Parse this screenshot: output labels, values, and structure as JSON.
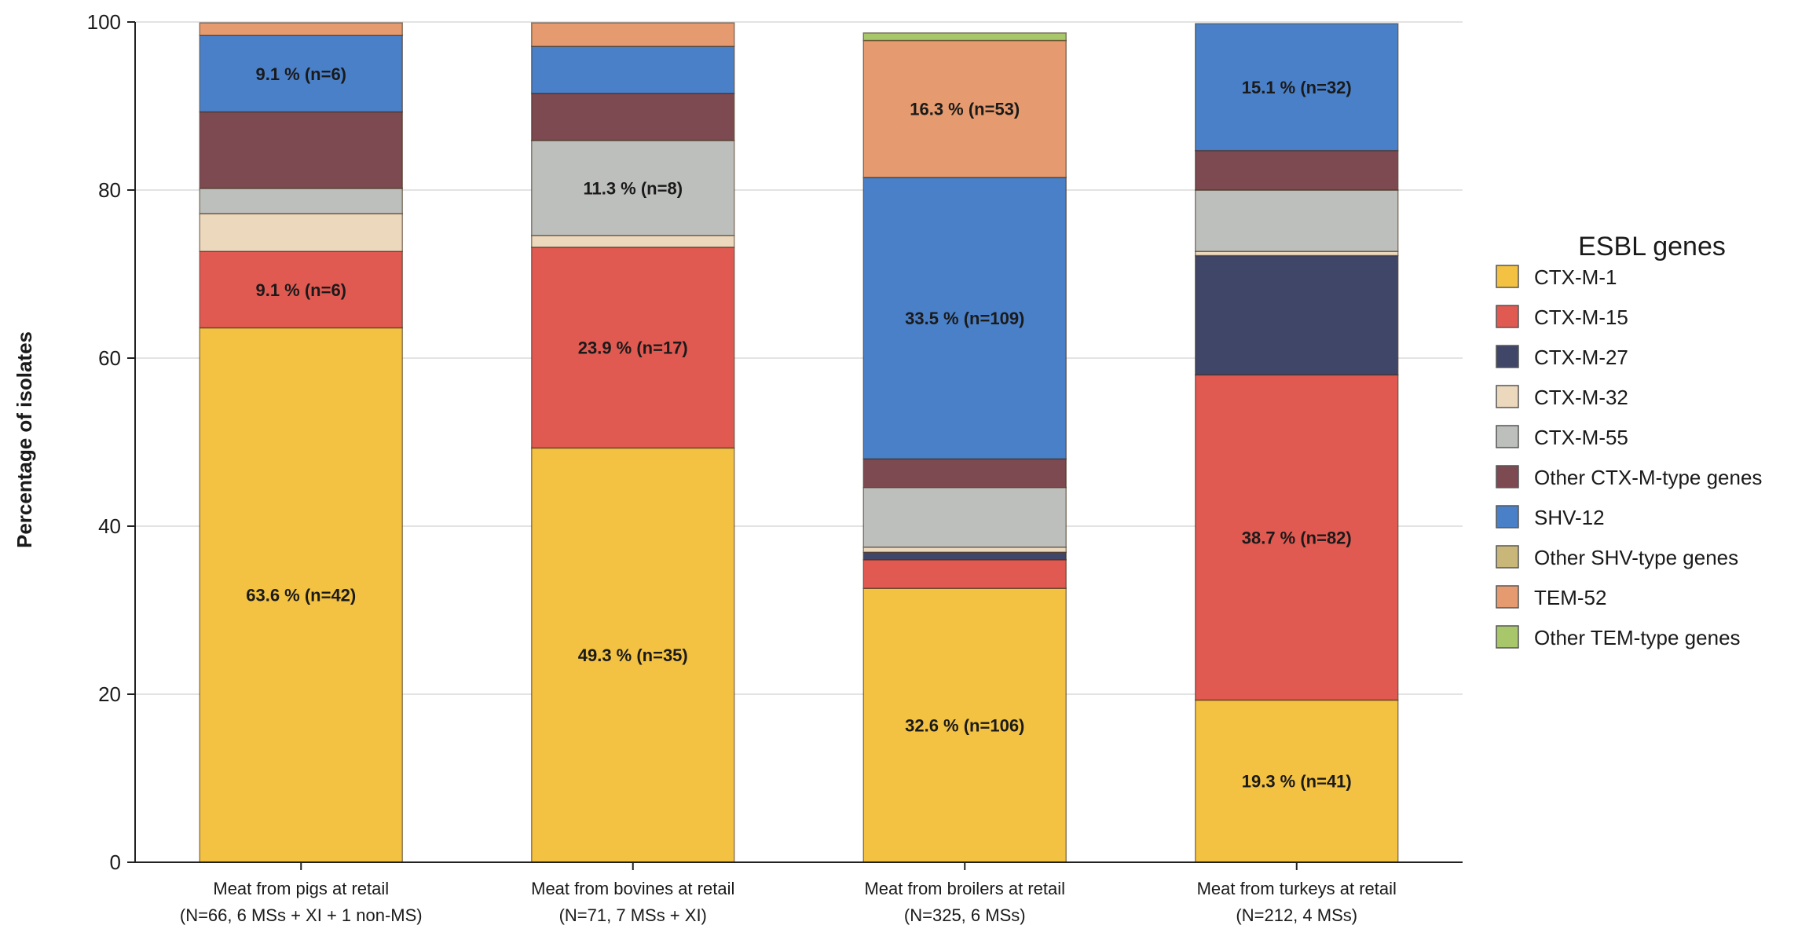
{
  "chart_data": {
    "type": "bar",
    "stacked": true,
    "ylabel": "Percentage of isolates",
    "xlabel": "",
    "ylim": [
      0,
      100
    ],
    "yticks": [
      0,
      20,
      40,
      60,
      80,
      100
    ],
    "grid": true,
    "legend": {
      "title": "ESBL genes",
      "placement": "right"
    },
    "categories": [
      {
        "line1": "Meat from pigs at retail",
        "line2": "(N=66, 6 MSs + XI + 1 non-MS)"
      },
      {
        "line1": "Meat from bovines at retail",
        "line2": "(N=71, 7 MSs + XI)"
      },
      {
        "line1": "Meat from broilers at retail",
        "line2": "(N=325, 6 MSs)"
      },
      {
        "line1": "Meat from turkeys at retail",
        "line2": "(N=212, 4 MSs)"
      }
    ],
    "series": [
      {
        "name": "CTX-M-1",
        "color": "#f3c242",
        "values": [
          63.6,
          49.3,
          32.6,
          19.3
        ],
        "labels": [
          "63.6 % (n=42)",
          "49.3 % (n=35)",
          "32.6 % (n=106)",
          "19.3 % (n=41)"
        ]
      },
      {
        "name": "CTX-M-15",
        "color": "#e05a52",
        "values": [
          9.1,
          23.9,
          3.4,
          38.7
        ],
        "labels": [
          "9.1 % (n=6)",
          "23.9 % (n=17)",
          "",
          "38.7 % (n=82)"
        ]
      },
      {
        "name": "CTX-M-27",
        "color": "#3f4668",
        "values": [
          0,
          0,
          0.9,
          14.2
        ],
        "labels": [
          "",
          "",
          "",
          ""
        ]
      },
      {
        "name": "CTX-M-32",
        "color": "#ecd8bd",
        "values": [
          4.5,
          1.4,
          0.6,
          0.5
        ],
        "labels": [
          "",
          "",
          "",
          ""
        ]
      },
      {
        "name": "CTX-M-55",
        "color": "#bdbfbc",
        "values": [
          3.0,
          11.3,
          7.1,
          7.3
        ],
        "labels": [
          "",
          "11.3 % (n=8)",
          "",
          ""
        ]
      },
      {
        "name": "Other CTX-M-type genes",
        "color": "#7d4a52",
        "values": [
          9.1,
          5.6,
          3.4,
          4.7
        ],
        "labels": [
          "",
          "",
          "",
          ""
        ]
      },
      {
        "name": "SHV-12",
        "color": "#4a80c8",
        "values": [
          9.1,
          5.6,
          33.5,
          15.1
        ],
        "labels": [
          "9.1 % (n=6)",
          "",
          "33.5 % (n=109)",
          "15.1 % (n=32)"
        ]
      },
      {
        "name": "Other SHV-type genes",
        "color": "#c9b77a",
        "values": [
          0,
          0,
          0,
          0
        ],
        "labels": [
          "",
          "",
          "",
          ""
        ]
      },
      {
        "name": "TEM-52",
        "color": "#e59b6f",
        "values": [
          1.5,
          2.8,
          16.3,
          0
        ],
        "labels": [
          "",
          "",
          "16.3 % (n=53)",
          ""
        ]
      },
      {
        "name": "Other TEM-type genes",
        "color": "#a8c76a",
        "values": [
          0,
          0,
          0.9,
          0
        ],
        "labels": [
          "",
          "",
          "",
          ""
        ]
      }
    ]
  }
}
